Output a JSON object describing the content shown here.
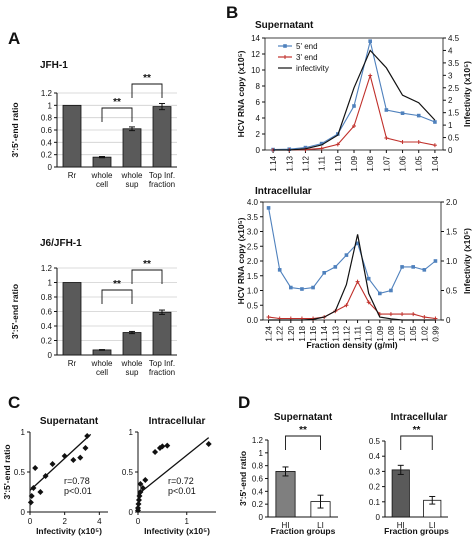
{
  "colors": {
    "bar_gray": "#5a5a5a",
    "bar_light": "#7f7f7f",
    "five_prime": "#4f81bd",
    "three_prime": "#c0302b",
    "infectivity": "#111111"
  },
  "chart_data": [
    {
      "panel": "A",
      "type": "bar",
      "title": "JFH-1",
      "ylabel": "3':5'-end ratio",
      "ylim": [
        0,
        1.2
      ],
      "yticks": [
        "0",
        "0.2",
        "0.4",
        "0.6",
        "0.8",
        "1",
        "1.2"
      ],
      "categories": [
        [
          "Rr"
        ],
        [
          "whole",
          "cell"
        ],
        [
          "whole",
          "sup"
        ],
        [
          "Top Inf.",
          "fraction"
        ]
      ],
      "values": [
        1.0,
        0.16,
        0.62,
        0.98
      ],
      "errors": [
        0,
        0.01,
        0.03,
        0.05
      ],
      "significance": [
        {
          "from": 1,
          "to": 2,
          "label": "**"
        },
        {
          "from": 2,
          "to": 3,
          "label": "**"
        }
      ]
    },
    {
      "panel": "A",
      "type": "bar",
      "title": "J6/JFH-1",
      "ylabel": "3':5'-end ratio",
      "ylim": [
        0,
        1.2
      ],
      "yticks": [
        "0",
        "0.2",
        "0.4",
        "0.6",
        "0.8",
        "1",
        "1.2"
      ],
      "categories": [
        [
          "Rr"
        ],
        [
          "whole",
          "cell"
        ],
        [
          "whole",
          "sup"
        ],
        [
          "Top Inf.",
          "fraction"
        ]
      ],
      "values": [
        1.0,
        0.07,
        0.31,
        0.59
      ],
      "errors": [
        0,
        0.005,
        0.015,
        0.03
      ],
      "significance": [
        {
          "from": 1,
          "to": 2,
          "label": "**"
        },
        {
          "from": 2,
          "to": 3,
          "label": "**"
        }
      ]
    },
    {
      "panel": "B",
      "type": "line",
      "title": "Supernatant",
      "ylabel": "HCV RNA copy (x10⁵)",
      "y2label": "Infectivity (x10⁵)",
      "ylim": [
        0,
        14
      ],
      "yticks": [
        "0",
        "2",
        "4",
        "6",
        "8",
        "10",
        "12",
        "14"
      ],
      "y2lim": [
        0,
        4.5
      ],
      "y2ticks": [
        "0",
        "0.5",
        "1",
        "1.5",
        "2",
        "2.5",
        "3",
        "3.5",
        "4",
        "4.5"
      ],
      "x": [
        "1.14",
        "1.13",
        "1.12",
        "1.11",
        "1.10",
        "1.09",
        "1.08",
        "1.07",
        "1.06",
        "1.05",
        "1.04"
      ],
      "legend": [
        "5' end",
        "3' end",
        "infectivity"
      ],
      "series": [
        {
          "name": "5' end",
          "axis": "left",
          "values": [
            0.05,
            0.1,
            0.3,
            0.8,
            2.0,
            5.5,
            13.6,
            5.0,
            4.6,
            4.3,
            3.5
          ]
        },
        {
          "name": "3' end",
          "axis": "left",
          "values": [
            0.0,
            0.0,
            0.05,
            0.2,
            0.7,
            3.0,
            9.3,
            1.5,
            1.0,
            1.0,
            0.6
          ]
        },
        {
          "name": "infectivity",
          "axis": "right",
          "values": [
            0.0,
            0.0,
            0.05,
            0.2,
            0.6,
            2.5,
            4.0,
            3.3,
            2.2,
            1.9,
            1.2
          ]
        }
      ]
    },
    {
      "panel": "B",
      "type": "line",
      "title": "Intracellular",
      "ylabel": "HCV RNA copy (x10⁵)",
      "y2label": "Infectivity (x10⁵)",
      "xlabel": "Fraction density (g/ml)",
      "ylim": [
        0,
        4.0
      ],
      "yticks": [
        "0.0",
        "0.5",
        "1.0",
        "1.5",
        "2.0",
        "2.5",
        "3.0",
        "3.5",
        "4.0"
      ],
      "y2lim": [
        0,
        2.0
      ],
      "y2ticks": [
        "0",
        "0.5",
        "1.0",
        "1.5",
        "2.0"
      ],
      "x": [
        "1.24",
        "1.22",
        "1.20",
        "1.18",
        "1.16",
        "1.14",
        "1.13",
        "1.12",
        "1.11",
        "1.10",
        "1.09",
        "1.08",
        "1.07",
        "1.05",
        "1.02",
        "0.99"
      ],
      "series": [
        {
          "name": "5' end",
          "axis": "left",
          "values": [
            3.8,
            1.7,
            1.1,
            1.05,
            1.1,
            1.6,
            1.8,
            2.2,
            2.6,
            1.4,
            0.9,
            1.0,
            1.8,
            1.8,
            1.7,
            2.0
          ]
        },
        {
          "name": "3' end",
          "axis": "left",
          "values": [
            0.1,
            0.05,
            0.05,
            0.05,
            0.05,
            0.1,
            0.3,
            0.5,
            1.3,
            0.6,
            0.2,
            0.2,
            0.2,
            0.2,
            0.1,
            0.05
          ]
        },
        {
          "name": "infectivity",
          "axis": "right",
          "values": [
            0.0,
            0.0,
            0.0,
            0.0,
            0.01,
            0.05,
            0.15,
            0.6,
            1.45,
            0.45,
            0.05,
            0.02,
            0.0,
            0.0,
            0.0,
            0.0
          ]
        }
      ]
    },
    {
      "panel": "C",
      "type": "scatter",
      "title": "Supernatant",
      "ylabel": "3':5'-end ratio",
      "xlabel": "Infectivity (x10⁵)",
      "xlim": [
        0,
        4.5
      ],
      "xticks": [
        "0",
        "2",
        "4"
      ],
      "ylim": [
        0,
        1
      ],
      "yticks": [
        "0",
        "0.5",
        "1"
      ],
      "x": [
        0.05,
        0.1,
        0.2,
        0.3,
        0.6,
        0.9,
        1.3,
        2.5,
        2.0,
        2.9,
        3.2,
        3.3
      ],
      "y": [
        0.12,
        0.2,
        0.3,
        0.55,
        0.25,
        0.45,
        0.6,
        0.65,
        0.7,
        0.68,
        0.8,
        0.95
      ],
      "fit": {
        "x": [
          0.0,
          3.5
        ],
        "y": [
          0.27,
          0.97
        ]
      },
      "annotations": [
        "r=0.78",
        "p<0.01"
      ]
    },
    {
      "panel": "C",
      "type": "scatter",
      "title": "Intracellular",
      "xlabel": "Infectivity (x10⁵)",
      "xlim": [
        0,
        1.6
      ],
      "xticks": [
        "0",
        "1"
      ],
      "ylim": [
        0,
        1
      ],
      "yticks": [
        "0",
        "0.5",
        "1"
      ],
      "x": [
        0.0,
        0.0,
        0.01,
        0.02,
        0.03,
        0.05,
        0.05,
        0.1,
        0.15,
        0.35,
        0.45,
        0.5,
        0.6,
        1.45
      ],
      "y": [
        0.02,
        0.05,
        0.1,
        0.15,
        0.2,
        0.25,
        0.35,
        0.3,
        0.4,
        0.75,
        0.8,
        0.82,
        0.83,
        0.85
      ],
      "fit": {
        "x": [
          0.0,
          1.45
        ],
        "y": [
          0.22,
          0.93
        ]
      },
      "annotations": [
        "r=0.72",
        "p<0.01"
      ]
    },
    {
      "panel": "D",
      "type": "bar",
      "title": "Supernatant",
      "ylabel": "3':5'-end ratio",
      "xlabel": "Fraction groups",
      "ylim": [
        0,
        1.2
      ],
      "yticks": [
        "0",
        "0.2",
        "0.4",
        "0.6",
        "0.8",
        "1",
        "1.2"
      ],
      "categories": [
        "HI",
        "LI"
      ],
      "values": [
        0.71,
        0.24
      ],
      "errors": [
        0.07,
        0.1
      ],
      "significance": [
        {
          "from": 0,
          "to": 1,
          "label": "**"
        }
      ]
    },
    {
      "panel": "D",
      "type": "bar",
      "title": "Intracellular",
      "xlabel": "Fraction groups",
      "ylim": [
        0,
        0.5
      ],
      "yticks": [
        "0",
        "0.1",
        "0.2",
        "0.3",
        "0.4",
        "0.5"
      ],
      "categories": [
        "HI",
        "LI"
      ],
      "values": [
        0.31,
        0.11
      ],
      "errors": [
        0.03,
        0.025
      ],
      "significance": [
        {
          "from": 0,
          "to": 1,
          "label": "**"
        }
      ]
    }
  ],
  "panel_letters": [
    "A",
    "B",
    "C",
    "D"
  ]
}
